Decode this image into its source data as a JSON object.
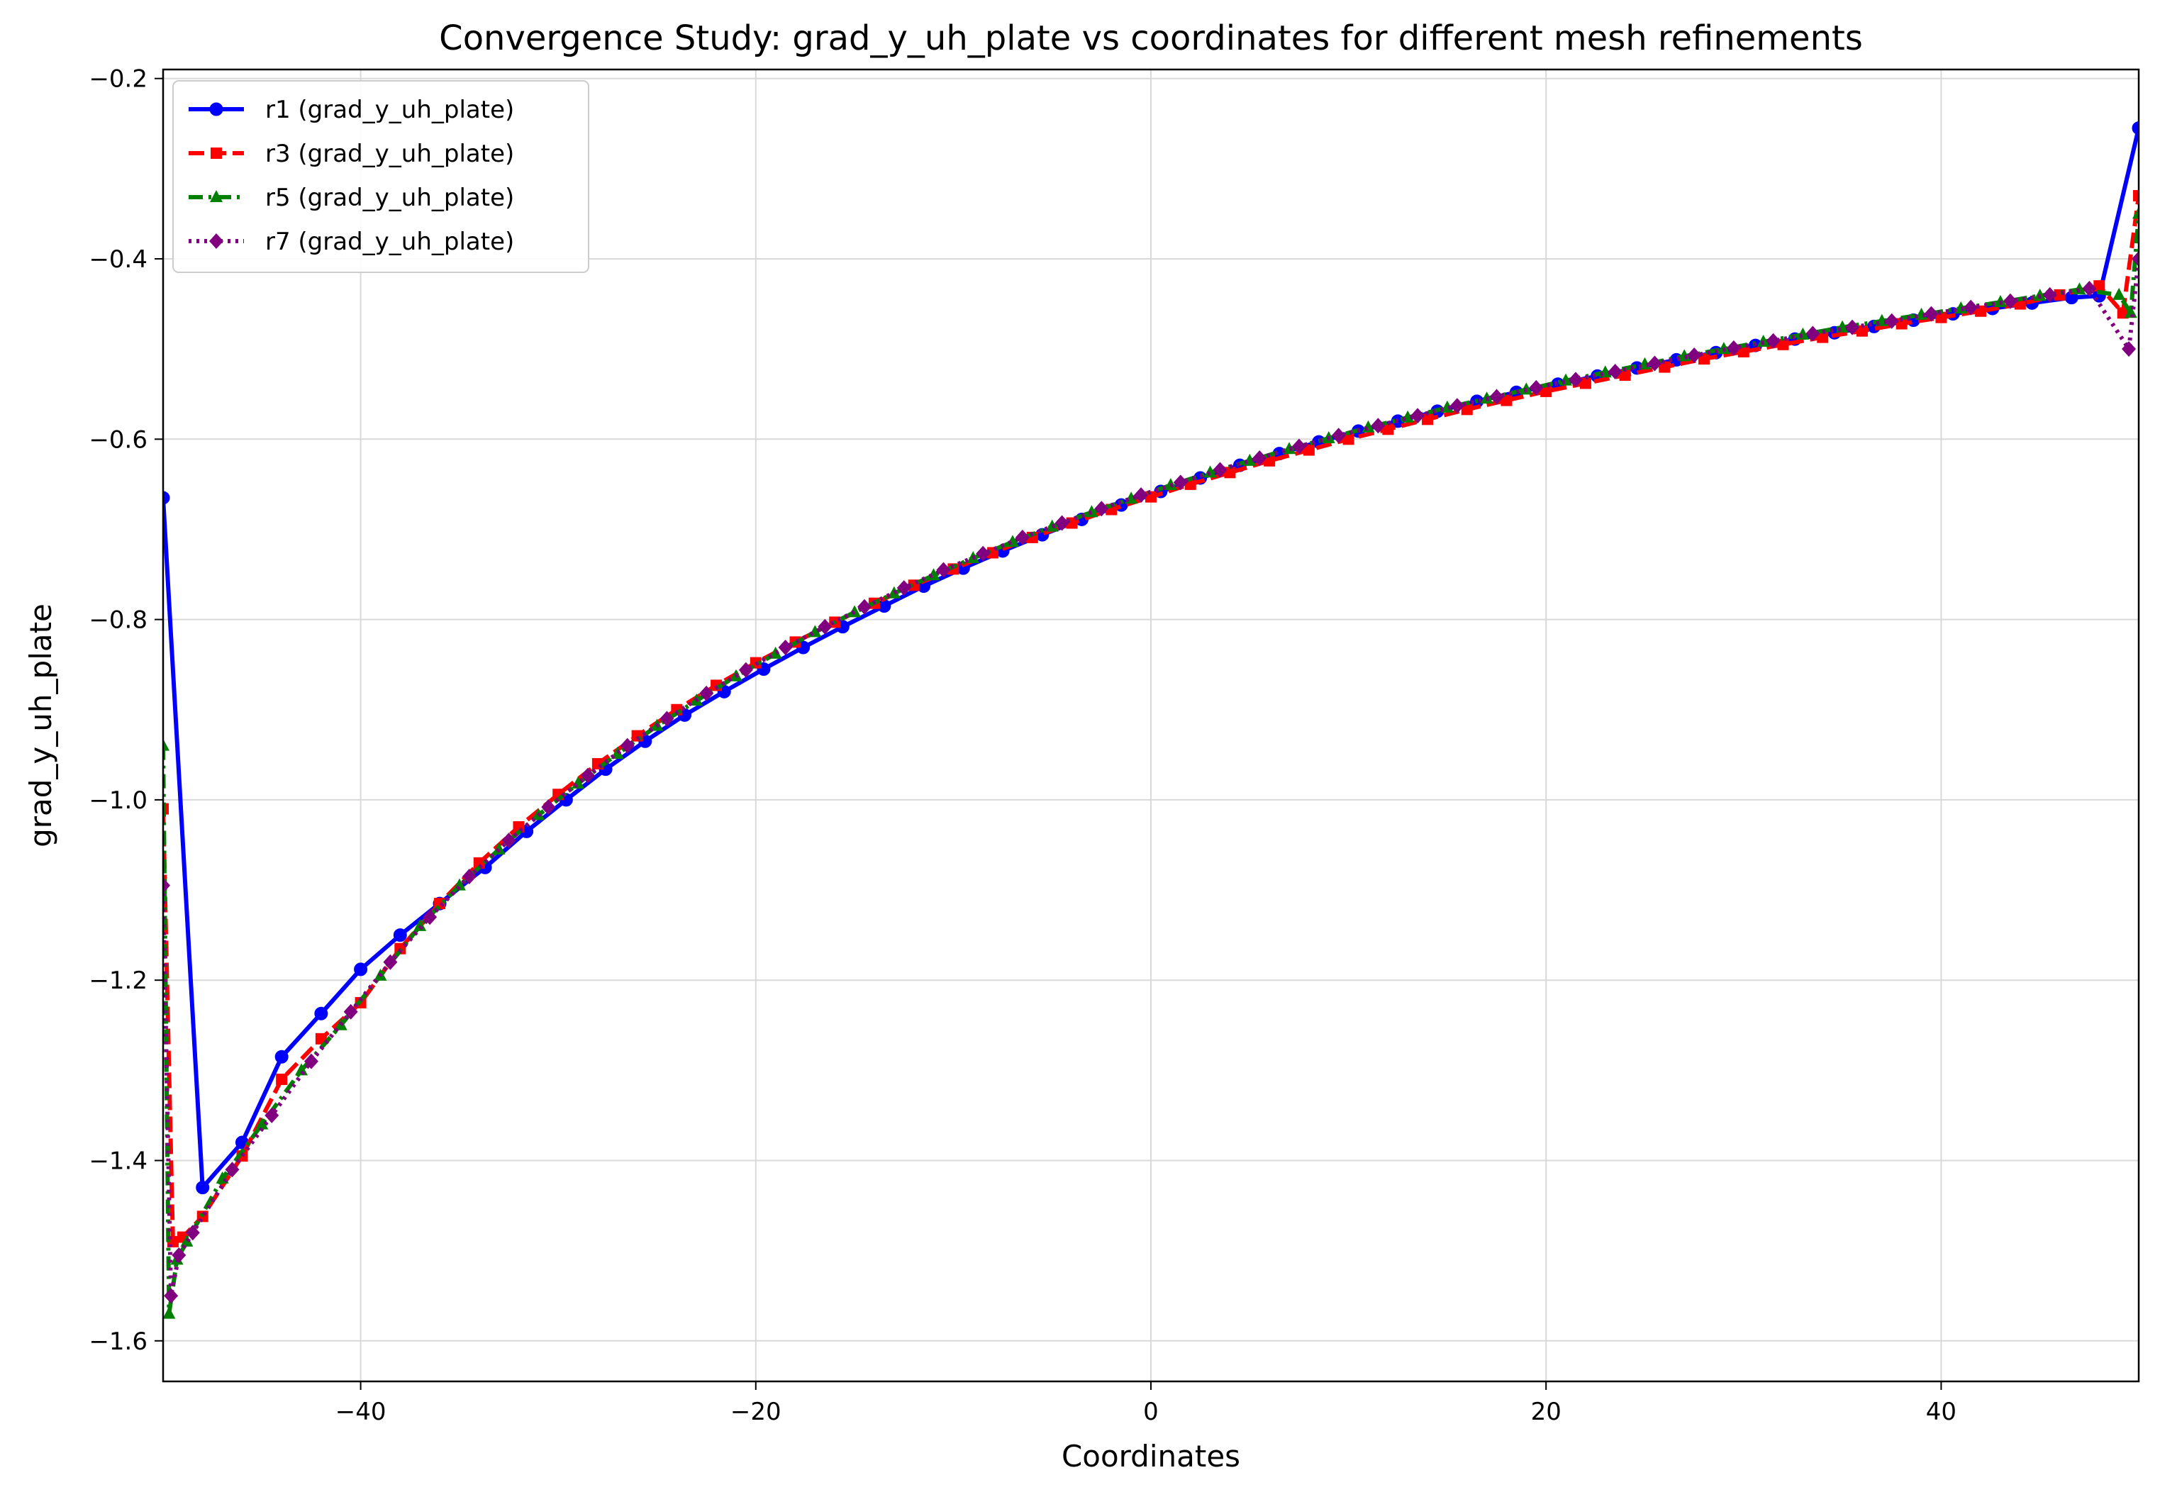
{
  "chart_data": {
    "type": "line",
    "title": "Convergence Study: grad_y_uh_plate vs coordinates for different mesh refinements",
    "xlabel": "Coordinates",
    "ylabel": "grad_y_uh_plate",
    "xlim": [
      -50,
      50
    ],
    "ylim": [
      -1.645,
      -0.19
    ],
    "xticks": [
      -40,
      -20,
      0,
      20,
      40
    ],
    "xtick_labels": [
      "−40",
      "−20",
      "0",
      "20",
      "40"
    ],
    "yticks": [
      -1.6,
      -1.4,
      -1.2,
      -1.0,
      -0.8,
      -0.6,
      -0.4,
      -0.2
    ],
    "ytick_labels": [
      "−1.6",
      "−1.4",
      "−1.2",
      "−1.0",
      "−0.8",
      "−0.6",
      "−0.4",
      "−0.2"
    ],
    "grid": true,
    "legend_position": "top-left",
    "series": [
      {
        "name": "r1 (grad_y_uh_plate)",
        "color": "#0000ff",
        "linestyle": "solid",
        "marker": "circle",
        "x": [
          -50,
          -48,
          -46,
          -44,
          -42,
          -40,
          -38,
          -36,
          -33.7,
          -31.6,
          -29.6,
          -27.6,
          -25.6,
          -23.6,
          -21.6,
          -19.6,
          -17.6,
          -15.6,
          -13.5,
          -11.5,
          -9.5,
          -7.5,
          -5.5,
          -3.5,
          -1.5,
          0.5,
          2.5,
          4.5,
          6.5,
          8.5,
          10.5,
          12.5,
          14.5,
          16.5,
          18.5,
          20.6,
          22.6,
          24.6,
          26.6,
          28.6,
          30.6,
          32.6,
          34.6,
          36.6,
          38.6,
          40.6,
          42.6,
          44.6,
          46.6,
          48.0,
          50.0
        ],
        "y": [
          -0.665,
          -1.43,
          -1.38,
          -1.285,
          -1.237,
          -1.188,
          -1.15,
          -1.115,
          -1.075,
          -1.035,
          -1.0,
          -0.966,
          -0.935,
          -0.906,
          -0.88,
          -0.855,
          -0.831,
          -0.808,
          -0.785,
          -0.763,
          -0.743,
          -0.724,
          -0.706,
          -0.689,
          -0.673,
          -0.658,
          -0.643,
          -0.629,
          -0.616,
          -0.603,
          -0.591,
          -0.58,
          -0.569,
          -0.558,
          -0.548,
          -0.539,
          -0.53,
          -0.521,
          -0.512,
          -0.504,
          -0.496,
          -0.489,
          -0.482,
          -0.475,
          -0.468,
          -0.461,
          -0.455,
          -0.449,
          -0.443,
          -0.441,
          -0.255
        ]
      },
      {
        "name": "r3 (grad_y_uh_plate)",
        "color": "#ff0000",
        "linestyle": "dashed",
        "marker": "square",
        "x": [
          -50,
          -49.5,
          -49,
          -48,
          -46,
          -44,
          -42,
          -40,
          -38,
          -36,
          -34,
          -32,
          -30,
          -28,
          -26,
          -24,
          -22,
          -20,
          -18,
          -16,
          -14,
          -12,
          -10,
          -8,
          -6,
          -4,
          -2,
          0,
          2,
          4,
          6,
          8,
          10,
          12,
          14,
          16,
          18,
          20,
          22,
          24,
          26,
          28,
          30,
          32,
          34,
          36,
          38,
          40,
          42,
          44,
          46,
          48,
          49.2,
          50
        ],
        "y": [
          -1.01,
          -1.49,
          -1.485,
          -1.462,
          -1.395,
          -1.31,
          -1.265,
          -1.225,
          -1.165,
          -1.115,
          -1.07,
          -1.03,
          -0.994,
          -0.96,
          -0.929,
          -0.9,
          -0.873,
          -0.848,
          -0.825,
          -0.803,
          -0.782,
          -0.762,
          -0.744,
          -0.726,
          -0.709,
          -0.693,
          -0.678,
          -0.664,
          -0.65,
          -0.637,
          -0.624,
          -0.612,
          -0.6,
          -0.589,
          -0.578,
          -0.567,
          -0.557,
          -0.547,
          -0.538,
          -0.529,
          -0.52,
          -0.511,
          -0.503,
          -0.495,
          -0.487,
          -0.48,
          -0.472,
          -0.465,
          -0.458,
          -0.45,
          -0.44,
          -0.43,
          -0.46,
          -0.33
        ]
      },
      {
        "name": "r5 (grad_y_uh_plate)",
        "color": "#008000",
        "linestyle": "dashdot",
        "marker": "triangle",
        "x": [
          -50,
          -49.7,
          -49.3,
          -48.8,
          -47,
          -45,
          -43,
          -41,
          -39,
          -37,
          -35,
          -33,
          -31,
          -29,
          -27,
          -25,
          -23,
          -21,
          -19,
          -17,
          -15,
          -13,
          -11,
          -9,
          -7,
          -5,
          -3,
          -1,
          1,
          3,
          5,
          7,
          9,
          11,
          13,
          15,
          17,
          19,
          21,
          23,
          25,
          27,
          29,
          31,
          33,
          35,
          37,
          39,
          41,
          43,
          45,
          47,
          49,
          49.6,
          50
        ],
        "y": [
          -0.94,
          -1.57,
          -1.51,
          -1.49,
          -1.42,
          -1.36,
          -1.3,
          -1.25,
          -1.195,
          -1.14,
          -1.095,
          -1.055,
          -1.017,
          -0.982,
          -0.949,
          -0.918,
          -0.89,
          -0.863,
          -0.838,
          -0.814,
          -0.792,
          -0.771,
          -0.751,
          -0.732,
          -0.714,
          -0.697,
          -0.681,
          -0.666,
          -0.651,
          -0.637,
          -0.624,
          -0.611,
          -0.599,
          -0.587,
          -0.576,
          -0.565,
          -0.555,
          -0.545,
          -0.535,
          -0.526,
          -0.517,
          -0.508,
          -0.5,
          -0.492,
          -0.484,
          -0.476,
          -0.469,
          -0.462,
          -0.455,
          -0.448,
          -0.441,
          -0.434,
          -0.44,
          -0.46,
          -0.35
        ]
      },
      {
        "name": "r7 (grad_y_uh_plate)",
        "color": "#800080",
        "linestyle": "dotted",
        "marker": "diamond",
        "x": [
          -50,
          -49.6,
          -49.2,
          -48.5,
          -46.5,
          -44.5,
          -42.5,
          -40.5,
          -38.5,
          -36.5,
          -34.5,
          -32.5,
          -30.5,
          -28.5,
          -26.5,
          -24.5,
          -22.5,
          -20.5,
          -18.5,
          -16.5,
          -14.5,
          -12.5,
          -10.5,
          -8.5,
          -6.5,
          -4.5,
          -2.5,
          -0.5,
          1.5,
          3.5,
          5.5,
          7.5,
          9.5,
          11.5,
          13.5,
          15.5,
          17.5,
          19.5,
          21.5,
          23.5,
          25.5,
          27.5,
          29.5,
          31.5,
          33.5,
          35.5,
          37.5,
          39.5,
          41.5,
          43.5,
          45.5,
          47.5,
          49.5,
          50
        ],
        "y": [
          -1.095,
          -1.55,
          -1.505,
          -1.48,
          -1.41,
          -1.35,
          -1.29,
          -1.235,
          -1.18,
          -1.13,
          -1.085,
          -1.045,
          -1.008,
          -0.973,
          -0.94,
          -0.91,
          -0.882,
          -0.856,
          -0.831,
          -0.808,
          -0.786,
          -0.765,
          -0.745,
          -0.727,
          -0.709,
          -0.693,
          -0.677,
          -0.662,
          -0.648,
          -0.634,
          -0.621,
          -0.608,
          -0.596,
          -0.585,
          -0.574,
          -0.563,
          -0.553,
          -0.543,
          -0.534,
          -0.525,
          -0.516,
          -0.507,
          -0.499,
          -0.491,
          -0.483,
          -0.476,
          -0.469,
          -0.461,
          -0.454,
          -0.447,
          -0.44,
          -0.433,
          -0.5,
          -0.4
        ]
      }
    ]
  }
}
